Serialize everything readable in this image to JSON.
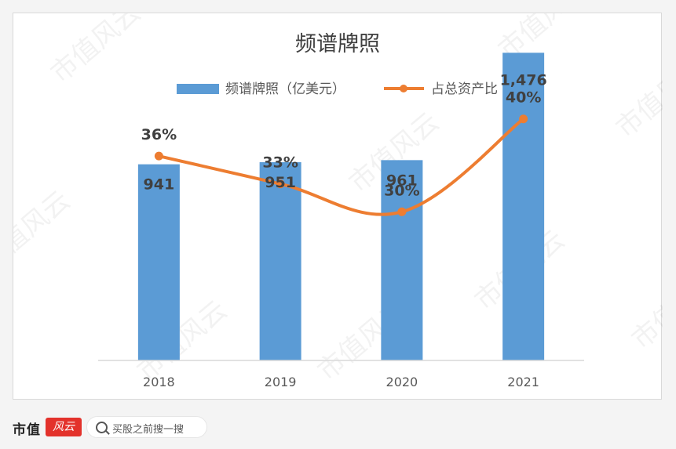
{
  "chart_data": {
    "type": "bar",
    "title": "频谱牌照",
    "categories": [
      "2018",
      "2019",
      "2020",
      "2021"
    ],
    "series": [
      {
        "name": "频谱牌照（亿美元）",
        "type": "bar",
        "values": [
          941,
          951,
          961,
          1476
        ],
        "labels": [
          "941",
          "951",
          "961",
          "1,476"
        ],
        "color": "#5b9bd5"
      },
      {
        "name": "占总资产比",
        "type": "line",
        "values": [
          36,
          33,
          30,
          40
        ],
        "labels": [
          "36%",
          "33%",
          "30%",
          "40%"
        ],
        "color": "#ed7d31"
      }
    ],
    "legend_position": "top",
    "grid": false
  },
  "watermark": "市值风云",
  "footer": {
    "brand_text": "市值",
    "brand_badge": "风云",
    "search_placeholder": "买股之前搜一搜"
  },
  "colors": {
    "bar": "#5b9bd5",
    "line": "#ed7d31",
    "label": "#404040",
    "axis": "#d9d9d9"
  }
}
